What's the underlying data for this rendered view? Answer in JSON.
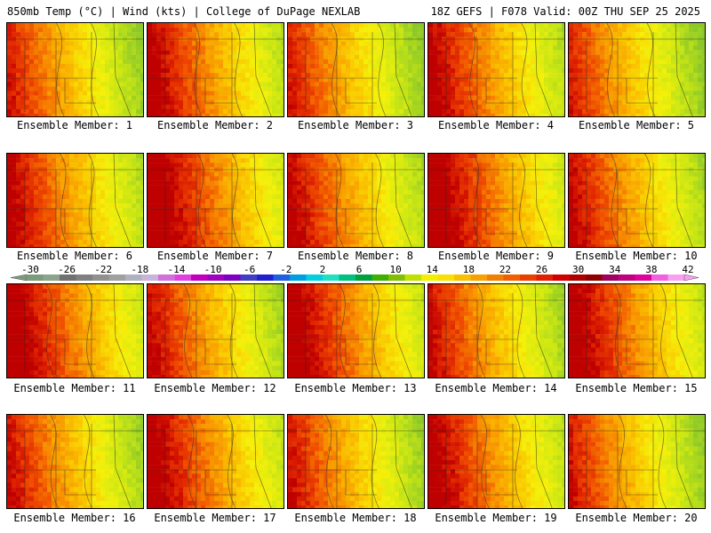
{
  "header": {
    "left": "850mb Temp (°C) | Wind (kts) | College of DuPage NEXLAB",
    "right": "18Z GEFS | F078 Valid: 00Z THU SEP 25 2025"
  },
  "panels": [
    {
      "label": "Ensemble Member: 1",
      "member": 1
    },
    {
      "label": "Ensemble Member: 2",
      "member": 2
    },
    {
      "label": "Ensemble Member: 3",
      "member": 3
    },
    {
      "label": "Ensemble Member: 4",
      "member": 4
    },
    {
      "label": "Ensemble Member: 5",
      "member": 5
    },
    {
      "label": "Ensemble Member: 6",
      "member": 6
    },
    {
      "label": "Ensemble Member: 7",
      "member": 7
    },
    {
      "label": "Ensemble Member: 8",
      "member": 8
    },
    {
      "label": "Ensemble Member: 9",
      "member": 9
    },
    {
      "label": "Ensemble Member: 10",
      "member": 10
    },
    {
      "label": "Ensemble Member: 11",
      "member": 11
    },
    {
      "label": "Ensemble Member: 12",
      "member": 12
    },
    {
      "label": "Ensemble Member: 13",
      "member": 13
    },
    {
      "label": "Ensemble Member: 14",
      "member": 14
    },
    {
      "label": "Ensemble Member: 15",
      "member": 15
    },
    {
      "label": "Ensemble Member: 16",
      "member": 16
    },
    {
      "label": "Ensemble Member: 17",
      "member": 17
    },
    {
      "label": "Ensemble Member: 18",
      "member": 18
    },
    {
      "label": "Ensemble Member: 19",
      "member": 19
    },
    {
      "label": "Ensemble Member: 20",
      "member": 20
    }
  ],
  "colorbar": {
    "tick_labels": [
      "-30",
      "-26",
      "-22",
      "-18",
      "-14",
      "-10",
      "-6",
      "-2",
      "2",
      "6",
      "10",
      "14",
      "18",
      "22",
      "26",
      "30",
      "34",
      "38",
      "42"
    ],
    "colors": [
      "#7c9a7c",
      "#8aa58a",
      "#707070",
      "#808080",
      "#909090",
      "#a0a0a0",
      "#b0b0c0",
      "#c8b4d8",
      "#d070d8",
      "#e040e0",
      "#c000c0",
      "#a000c0",
      "#8000c0",
      "#4040c0",
      "#2020d0",
      "#2060e0",
      "#00a0e0",
      "#00d0e0",
      "#20e0c0",
      "#00c080",
      "#00a040",
      "#40b000",
      "#80c000",
      "#c0e000",
      "#f0f000",
      "#f8e000",
      "#f8c000",
      "#f8a000",
      "#f08000",
      "#f06000",
      "#e84000",
      "#e02000",
      "#d00000",
      "#b00000",
      "#900000",
      "#a00060",
      "#c00080",
      "#e000a0",
      "#f060e0",
      "#f8a0f0"
    ]
  }
}
